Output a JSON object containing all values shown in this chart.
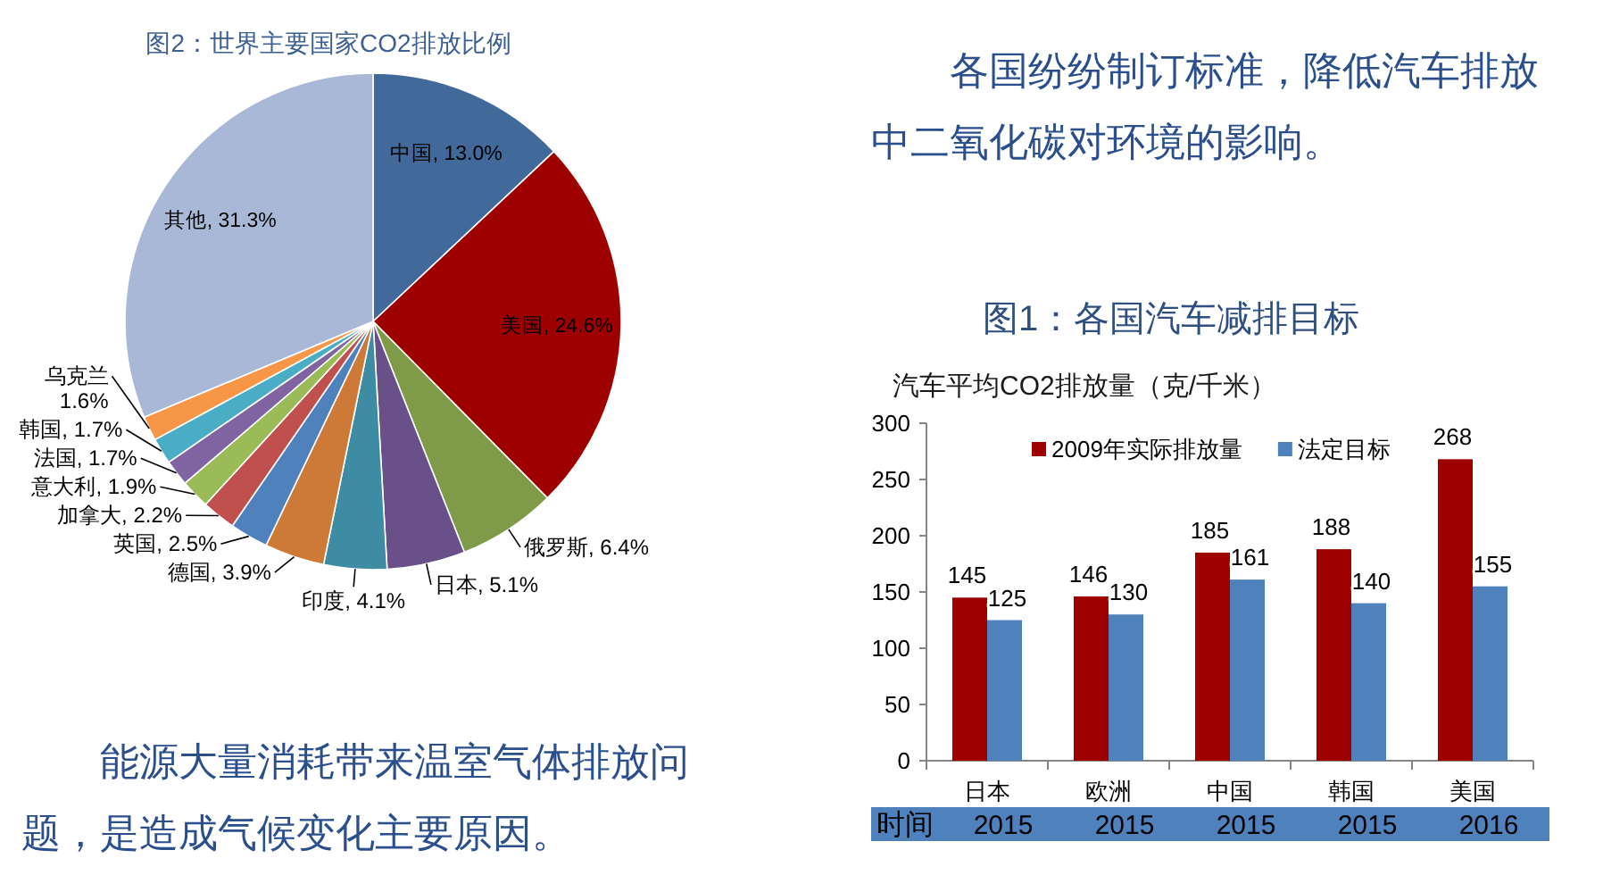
{
  "chart_data": [
    {
      "type": "pie",
      "title": "图2：世界主要国家CO2排放比例",
      "categories": [
        "中国",
        "美国",
        "俄罗斯",
        "日本",
        "印度",
        "德国",
        "英国",
        "加拿大",
        "意大利",
        "法国",
        "韩国",
        "乌克兰",
        "其他"
      ],
      "values": [
        13.0,
        24.6,
        6.4,
        5.1,
        4.1,
        3.9,
        2.5,
        2.2,
        1.9,
        1.7,
        1.7,
        1.6,
        31.3
      ],
      "value_labels": [
        "13.0%",
        "24.6%",
        "6.4%",
        "5.1%",
        "4.1%",
        "3.9%",
        "2.5%",
        "2.2%",
        "1.9%",
        "1.7%",
        "1.7%",
        "1.6%",
        "31.3%"
      ],
      "colors": [
        "#41699a",
        "#9e0000",
        "#7f9a48",
        "#6a5088",
        "#3d8ca3",
        "#cd7a38",
        "#4f81bd",
        "#c0504d",
        "#9bbb59",
        "#8064a2",
        "#4bacc6",
        "#f79646",
        "#a9b8d6"
      ]
    },
    {
      "type": "bar",
      "title": "图1：各国汽车减排目标",
      "ylabel": "汽车平均CO2排放量（克/千米）",
      "categories": [
        "日本",
        "欧洲",
        "中国",
        "韩国",
        "美国"
      ],
      "series": [
        {
          "name": "2009年实际排放量",
          "color": "#9e0000",
          "values": [
            145,
            146,
            185,
            188,
            268
          ]
        },
        {
          "name": "法定目标",
          "color": "#4f81bd",
          "values": [
            125,
            130,
            161,
            140,
            155
          ]
        }
      ],
      "ylim": [
        0,
        300
      ],
      "yticks": [
        0,
        50,
        100,
        150,
        200,
        250,
        300
      ],
      "data_labels": true,
      "legend": "top",
      "annotations": [
        "时间",
        "2015",
        "2015",
        "2015",
        "2015",
        "2016"
      ]
    },
    {
      "type": "other",
      "annotations": [
        "各国纷纷制订标准，降低汽车排放中二氧化碳对环境的影响。",
        "能源大量消耗带来温室气体排放问题，是造成气候变化主要原因。"
      ]
    }
  ]
}
